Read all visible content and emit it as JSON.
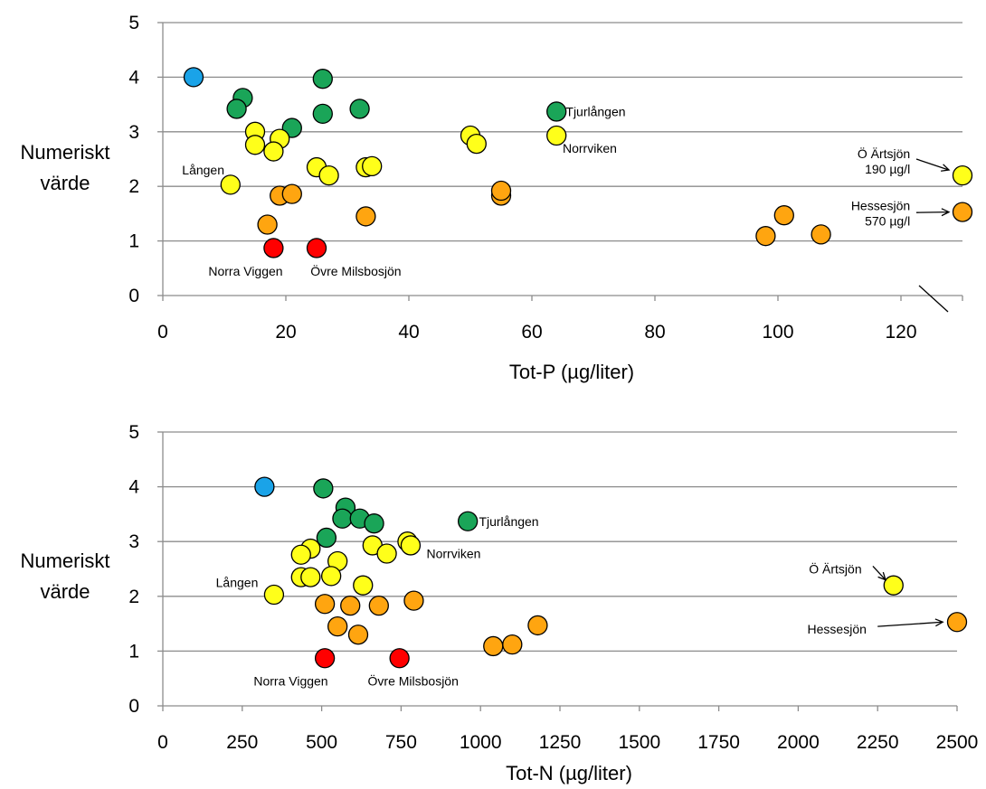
{
  "colors": {
    "blue": "#1aa3e8",
    "green": "#1aa558",
    "yellow": "#ffff1a",
    "orange": "#ffa510",
    "red": "#ff0000",
    "grid": "#8c8c8c"
  },
  "chart_data": [
    {
      "type": "scatter",
      "xlabel": "Tot-P (µg/liter)",
      "ylabel": [
        "Numeriskt",
        "värde"
      ],
      "xlim": [
        0,
        130
      ],
      "ylim": [
        0,
        5
      ],
      "xticks": [
        0,
        20,
        40,
        60,
        80,
        100,
        120
      ],
      "yticks": [
        0,
        1,
        2,
        3,
        4,
        5
      ],
      "grid": "horizontal",
      "axis_break": "x-axis, between 120 and the two outlier points",
      "points": [
        {
          "x": 5,
          "y": 4.0,
          "color": "blue"
        },
        {
          "x": 13,
          "y": 3.62,
          "color": "green"
        },
        {
          "x": 12,
          "y": 3.42,
          "color": "green"
        },
        {
          "x": 26,
          "y": 3.97,
          "color": "green"
        },
        {
          "x": 26,
          "y": 3.33,
          "color": "green"
        },
        {
          "x": 32,
          "y": 3.42,
          "color": "green"
        },
        {
          "x": 21,
          "y": 3.07,
          "color": "green"
        },
        {
          "x": 64,
          "y": 3.37,
          "color": "green"
        },
        {
          "x": 15,
          "y": 3.0,
          "color": "yellow"
        },
        {
          "x": 15,
          "y": 2.76,
          "color": "yellow"
        },
        {
          "x": 19,
          "y": 2.87,
          "color": "yellow"
        },
        {
          "x": 18,
          "y": 2.64,
          "color": "yellow"
        },
        {
          "x": 11,
          "y": 2.03,
          "color": "yellow"
        },
        {
          "x": 25,
          "y": 2.35,
          "color": "yellow"
        },
        {
          "x": 27,
          "y": 2.2,
          "color": "yellow"
        },
        {
          "x": 33,
          "y": 2.35,
          "color": "yellow"
        },
        {
          "x": 34,
          "y": 2.37,
          "color": "yellow"
        },
        {
          "x": 50,
          "y": 2.93,
          "color": "yellow"
        },
        {
          "x": 51,
          "y": 2.78,
          "color": "yellow"
        },
        {
          "x": 64,
          "y": 2.93,
          "color": "yellow"
        },
        {
          "x": 130,
          "y": 2.2,
          "color": "yellow"
        },
        {
          "x": 19,
          "y": 1.83,
          "color": "orange"
        },
        {
          "x": 21,
          "y": 1.86,
          "color": "orange"
        },
        {
          "x": 17,
          "y": 1.3,
          "color": "orange"
        },
        {
          "x": 33,
          "y": 1.45,
          "color": "orange"
        },
        {
          "x": 55,
          "y": 1.83,
          "color": "orange"
        },
        {
          "x": 55,
          "y": 1.92,
          "color": "orange"
        },
        {
          "x": 98,
          "y": 1.09,
          "color": "orange"
        },
        {
          "x": 101,
          "y": 1.47,
          "color": "orange"
        },
        {
          "x": 107,
          "y": 1.12,
          "color": "orange"
        },
        {
          "x": 130,
          "y": 1.53,
          "color": "orange"
        },
        {
          "x": 18,
          "y": 0.87,
          "color": "red"
        },
        {
          "x": 25,
          "y": 0.87,
          "color": "red"
        }
      ],
      "annotations": [
        {
          "lines": [
            "Tjurlången"
          ],
          "x": 65.5,
          "y": 3.37,
          "anchor": "start"
        },
        {
          "lines": [
            "Norrviken"
          ],
          "x": 65,
          "y": 2.7,
          "anchor": "start"
        },
        {
          "lines": [
            "Lången"
          ],
          "x": 10,
          "y": 2.3,
          "anchor": "end"
        },
        {
          "lines": [
            "Norra Viggen"
          ],
          "x": 19.5,
          "y": 0.45,
          "anchor": "end"
        },
        {
          "lines": [
            "Övre Milsbosjön"
          ],
          "x": 24,
          "y": 0.45,
          "anchor": "start"
        },
        {
          "lines": [
            "Ö Ärtsjön",
            "190 µg/l"
          ],
          "x": 121.5,
          "y": 2.6,
          "anchor": "end"
        },
        {
          "lines": [
            "Hessesjön",
            "570 µg/l"
          ],
          "x": 121.5,
          "y": 1.65,
          "anchor": "end"
        }
      ],
      "arrows": [
        {
          "from": [
            122.5,
            2.5
          ],
          "to": [
            127.8,
            2.3
          ]
        },
        {
          "from": [
            122.5,
            1.52
          ],
          "to": [
            127.8,
            1.53
          ]
        }
      ]
    },
    {
      "type": "scatter",
      "xlabel": "Tot-N (µg/liter)",
      "ylabel": [
        "Numeriskt",
        "värde"
      ],
      "xlim": [
        0,
        2500
      ],
      "ylim": [
        0,
        5
      ],
      "xticks": [
        0,
        250,
        500,
        750,
        1000,
        1250,
        1500,
        1750,
        2000,
        2250,
        2500
      ],
      "yticks": [
        0,
        1,
        2,
        3,
        4,
        5
      ],
      "grid": "horizontal",
      "points": [
        {
          "x": 320,
          "y": 4.0,
          "color": "blue"
        },
        {
          "x": 505,
          "y": 3.97,
          "color": "green"
        },
        {
          "x": 575,
          "y": 3.62,
          "color": "green"
        },
        {
          "x": 565,
          "y": 3.42,
          "color": "green"
        },
        {
          "x": 620,
          "y": 3.42,
          "color": "green"
        },
        {
          "x": 665,
          "y": 3.33,
          "color": "green"
        },
        {
          "x": 515,
          "y": 3.07,
          "color": "green"
        },
        {
          "x": 960,
          "y": 3.37,
          "color": "green"
        },
        {
          "x": 465,
          "y": 2.87,
          "color": "yellow"
        },
        {
          "x": 435,
          "y": 2.76,
          "color": "yellow"
        },
        {
          "x": 550,
          "y": 2.64,
          "color": "yellow"
        },
        {
          "x": 660,
          "y": 2.93,
          "color": "yellow"
        },
        {
          "x": 705,
          "y": 2.78,
          "color": "yellow"
        },
        {
          "x": 770,
          "y": 3.0,
          "color": "yellow"
        },
        {
          "x": 780,
          "y": 2.93,
          "color": "yellow"
        },
        {
          "x": 350,
          "y": 2.03,
          "color": "yellow"
        },
        {
          "x": 435,
          "y": 2.35,
          "color": "yellow"
        },
        {
          "x": 465,
          "y": 2.35,
          "color": "yellow"
        },
        {
          "x": 530,
          "y": 2.37,
          "color": "yellow"
        },
        {
          "x": 630,
          "y": 2.2,
          "color": "yellow"
        },
        {
          "x": 2300,
          "y": 2.2,
          "color": "yellow"
        },
        {
          "x": 510,
          "y": 1.86,
          "color": "orange"
        },
        {
          "x": 590,
          "y": 1.83,
          "color": "orange"
        },
        {
          "x": 680,
          "y": 1.83,
          "color": "orange"
        },
        {
          "x": 790,
          "y": 1.92,
          "color": "orange"
        },
        {
          "x": 550,
          "y": 1.45,
          "color": "orange"
        },
        {
          "x": 615,
          "y": 1.3,
          "color": "orange"
        },
        {
          "x": 1040,
          "y": 1.09,
          "color": "orange"
        },
        {
          "x": 1100,
          "y": 1.12,
          "color": "orange"
        },
        {
          "x": 1180,
          "y": 1.47,
          "color": "orange"
        },
        {
          "x": 2500,
          "y": 1.53,
          "color": "orange"
        },
        {
          "x": 510,
          "y": 0.87,
          "color": "red"
        },
        {
          "x": 745,
          "y": 0.87,
          "color": "red"
        }
      ],
      "annotations": [
        {
          "lines": [
            "Tjurlången"
          ],
          "x": 995,
          "y": 3.37,
          "anchor": "start"
        },
        {
          "lines": [
            "Norrviken"
          ],
          "x": 830,
          "y": 2.78,
          "anchor": "start"
        },
        {
          "lines": [
            "Lången"
          ],
          "x": 300,
          "y": 2.25,
          "anchor": "end"
        },
        {
          "lines": [
            "Norra Viggen"
          ],
          "x": 520,
          "y": 0.45,
          "anchor": "end"
        },
        {
          "lines": [
            "Övre Milsbosjön"
          ],
          "x": 645,
          "y": 0.45,
          "anchor": "start"
        },
        {
          "lines": [
            "Ö Ärtsjön"
          ],
          "x": 2200,
          "y": 2.5,
          "anchor": "end"
        },
        {
          "lines": [
            "Hessesjön"
          ],
          "x": 2215,
          "y": 1.4,
          "anchor": "end"
        }
      ],
      "arrows": [
        {
          "from": [
            2235,
            2.55
          ],
          "to": [
            2275,
            2.3
          ]
        },
        {
          "from": [
            2250,
            1.45
          ],
          "to": [
            2455,
            1.53
          ]
        }
      ]
    }
  ]
}
